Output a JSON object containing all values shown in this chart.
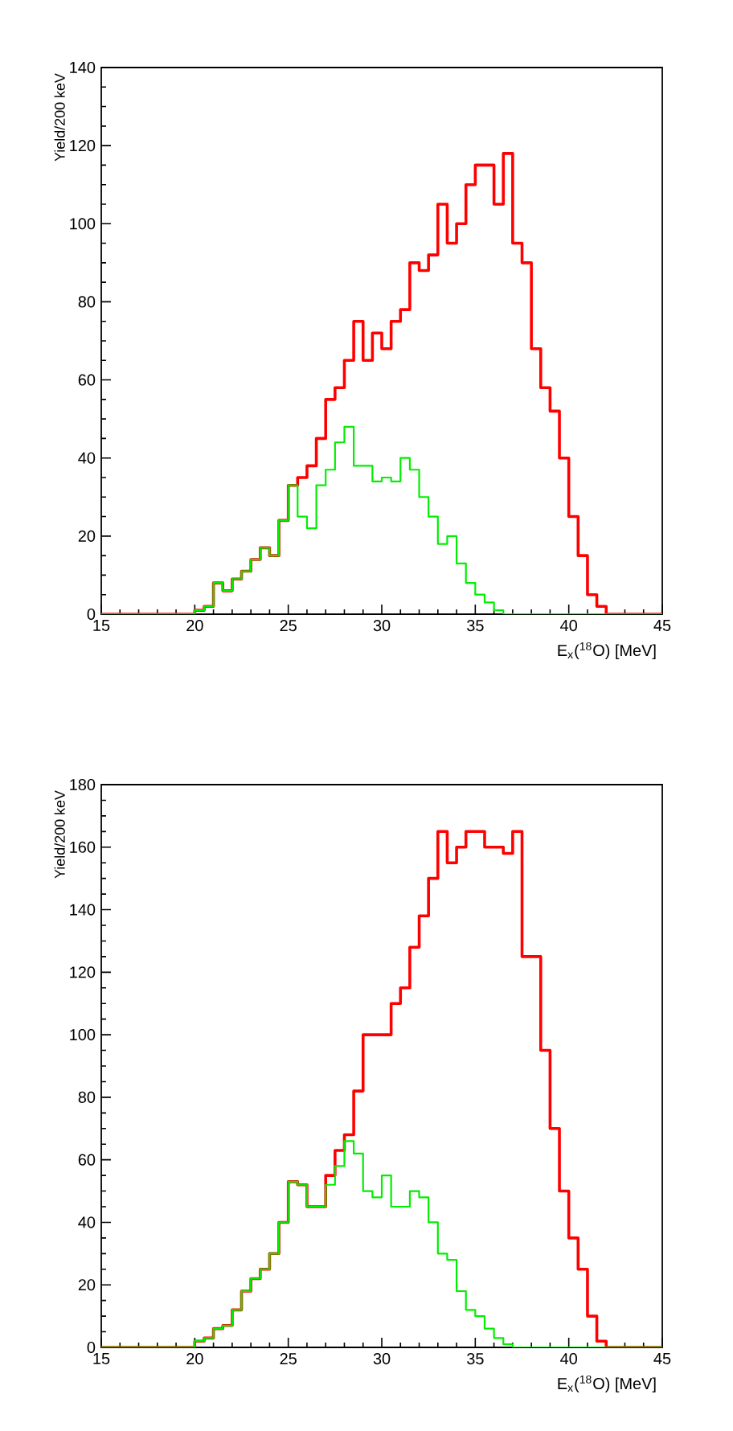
{
  "chart_data": [
    {
      "type": "histogram",
      "xlabel": "E$_{x}$($^{18}$O) [MeV]",
      "ylabel": "Yield/200 keV",
      "xlim": [
        15,
        45
      ],
      "ylim": [
        0,
        140
      ],
      "xticks": [
        15,
        20,
        25,
        30,
        35,
        40,
        45
      ],
      "yticks": [
        0,
        20,
        40,
        60,
        80,
        100,
        120,
        140
      ],
      "bins": [
        15,
        15.5,
        16,
        16.5,
        17,
        17.5,
        18,
        18.5,
        19,
        19.5,
        20,
        20.5,
        21,
        21.5,
        22,
        22.5,
        23,
        23.5,
        24,
        24.5,
        25,
        25.5,
        26,
        26.5,
        27,
        27.5,
        28,
        28.5,
        29,
        29.5,
        30,
        30.5,
        31,
        31.5,
        32,
        32.5,
        33,
        33.5,
        34,
        34.5,
        35,
        35.5,
        36,
        36.5,
        37,
        37.5,
        38,
        38.5,
        39,
        39.5,
        40,
        40.5,
        41,
        41.5,
        42,
        42.5,
        43,
        43.5,
        44,
        44.5,
        45
      ],
      "series": [
        {
          "color": "#ff0000",
          "values": [
            0,
            0,
            0,
            0,
            0,
            0,
            0,
            0,
            0,
            0,
            1,
            2,
            8,
            6,
            9,
            11,
            14,
            17,
            15,
            24,
            33,
            35,
            38,
            45,
            55,
            58,
            65,
            75,
            65,
            72,
            68,
            75,
            78,
            90,
            88,
            92,
            105,
            95,
            100,
            110,
            115,
            115,
            105,
            118,
            95,
            90,
            68,
            58,
            52,
            40,
            25,
            15,
            5,
            2,
            0,
            0,
            0,
            0,
            0,
            0
          ]
        },
        {
          "color": "#00ee00",
          "values": [
            0,
            0,
            0,
            0,
            0,
            0,
            0,
            0,
            0,
            0,
            1,
            2,
            8,
            6,
            9,
            11,
            14,
            17,
            15,
            24,
            33,
            25,
            22,
            33,
            37,
            44,
            48,
            38,
            38,
            34,
            35,
            34,
            40,
            37,
            30,
            25,
            18,
            20,
            13,
            8,
            5,
            3,
            1,
            0,
            0,
            0,
            0,
            0,
            0,
            0,
            0,
            0,
            0,
            0,
            0,
            0,
            0,
            0,
            0,
            0
          ]
        }
      ]
    },
    {
      "type": "histogram",
      "xlabel": "E$_{x}$($^{18}$O) [MeV]",
      "ylabel": "Yield/200 keV",
      "xlim": [
        15,
        45
      ],
      "ylim": [
        0,
        180
      ],
      "xticks": [
        15,
        20,
        25,
        30,
        35,
        40,
        45
      ],
      "yticks": [
        0,
        20,
        40,
        60,
        80,
        100,
        120,
        140,
        160,
        180
      ],
      "bins": [
        15,
        15.5,
        16,
        16.5,
        17,
        17.5,
        18,
        18.5,
        19,
        19.5,
        20,
        20.5,
        21,
        21.5,
        22,
        22.5,
        23,
        23.5,
        24,
        24.5,
        25,
        25.5,
        26,
        26.5,
        27,
        27.5,
        28,
        28.5,
        29,
        29.5,
        30,
        30.5,
        31,
        31.5,
        32,
        32.5,
        33,
        33.5,
        34,
        34.5,
        35,
        35.5,
        36,
        36.5,
        37,
        37.5,
        38,
        38.5,
        39,
        39.5,
        40,
        40.5,
        41,
        41.5,
        42,
        42.5,
        43,
        43.5,
        44,
        44.5,
        45
      ],
      "series": [
        {
          "color": "#ff0000",
          "values": [
            0,
            0,
            0,
            0,
            0,
            0,
            0,
            0,
            0,
            0,
            2,
            3,
            6,
            7,
            12,
            18,
            22,
            25,
            30,
            40,
            53,
            52,
            45,
            45,
            55,
            63,
            68,
            82,
            100,
            100,
            100,
            110,
            115,
            128,
            138,
            150,
            165,
            155,
            160,
            165,
            165,
            160,
            160,
            158,
            165,
            125,
            125,
            95,
            70,
            50,
            35,
            25,
            10,
            2,
            0,
            0,
            0,
            0,
            0,
            0
          ]
        },
        {
          "color": "#00ee00",
          "values": [
            0,
            0,
            0,
            0,
            0,
            0,
            0,
            0,
            0,
            0,
            2,
            3,
            6,
            7,
            12,
            18,
            22,
            25,
            30,
            40,
            53,
            52,
            45,
            45,
            52,
            58,
            66,
            62,
            50,
            48,
            55,
            45,
            45,
            50,
            48,
            40,
            30,
            28,
            18,
            12,
            10,
            6,
            3,
            1,
            0,
            0,
            0,
            0,
            0,
            0,
            0,
            0,
            0,
            0,
            0,
            0,
            0,
            0,
            0,
            0
          ]
        }
      ]
    }
  ]
}
